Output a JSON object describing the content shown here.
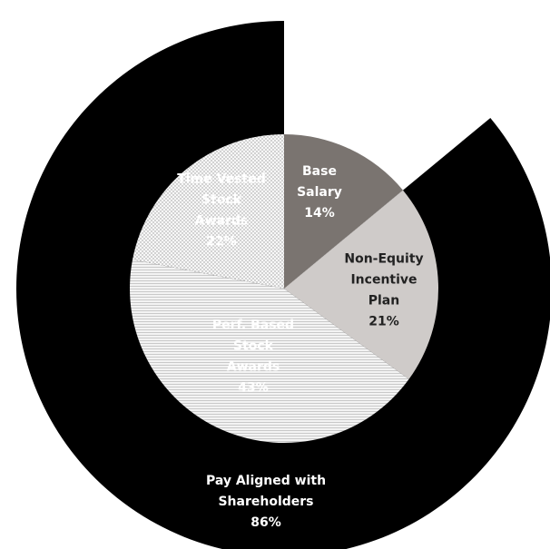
{
  "chart_data": {
    "type": "pie",
    "title": "",
    "inner": {
      "start_angle_deg": 0,
      "slices": [
        {
          "lines": [
            "Base",
            "Salary",
            "14%"
          ],
          "value": 14,
          "fill": "#7a7470",
          "pattern": "solid",
          "text_color": "#ffffff"
        },
        {
          "lines": [
            "Non-Equity",
            "Incentive",
            "Plan",
            "21%"
          ],
          "value": 21,
          "fill": "#cfcbc9",
          "pattern": "solid",
          "text_color": "#222222"
        },
        {
          "lines": [
            "Perf. Based",
            "Stock",
            "Awards",
            "43%"
          ],
          "value": 43,
          "fill": "#eeeeee",
          "pattern": "horizontal-lines",
          "text_color": "#ffffff"
        },
        {
          "lines": [
            "Time Vested",
            "Stock",
            "Awards",
            "22%"
          ],
          "value": 22,
          "fill": "#f4f4f4",
          "pattern": "dots",
          "text_color": "#ffffff"
        }
      ]
    },
    "outer": {
      "start_angle_deg": 0,
      "slices": [
        {
          "lines": [],
          "value": 14,
          "fill": "none"
        },
        {
          "lines": [
            "Pay Aligned with",
            "Shareholders",
            "86%"
          ],
          "value": 86,
          "fill": "#000000",
          "text_color": "#ffffff"
        }
      ]
    }
  }
}
